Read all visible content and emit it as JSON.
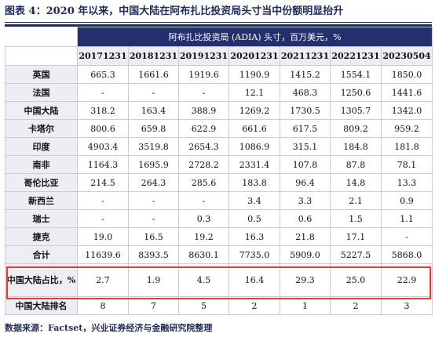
{
  "title": "图表 4：2020 年以来，中国大陆在阿布扎比投资局头寸当中份额明显抬升",
  "table": {
    "banner": "阿布扎比投资局 (ADIA) 头寸，百万美元，%",
    "columns": [
      "20171231",
      "20181231",
      "20191231",
      "20201231",
      "20211231",
      "20221231",
      "20230504"
    ],
    "rows": [
      {
        "label": "英国",
        "values": [
          "665.3",
          "1661.6",
          "1919.6",
          "1190.9",
          "1415.2",
          "1554.1",
          "1850.0"
        ]
      },
      {
        "label": "法国",
        "values": [
          "-",
          "-",
          "-",
          "12.1",
          "468.3",
          "1250.6",
          "1441.6"
        ]
      },
      {
        "label": "中国大陆",
        "values": [
          "318.2",
          "163.4",
          "388.9",
          "1269.2",
          "1730.5",
          "1305.7",
          "1342.0"
        ]
      },
      {
        "label": "卡塔尔",
        "values": [
          "800.6",
          "659.8",
          "622.9",
          "661.6",
          "617.5",
          "809.2",
          "959.2"
        ]
      },
      {
        "label": "印度",
        "values": [
          "4903.4",
          "3519.8",
          "2654.3",
          "1086.9",
          "315.1",
          "184.8",
          "181.8"
        ]
      },
      {
        "label": "南非",
        "values": [
          "1164.3",
          "1695.9",
          "2728.2",
          "2331.4",
          "107.8",
          "87.8",
          "78.1"
        ]
      },
      {
        "label": "哥伦比亚",
        "values": [
          "214.5",
          "264.3",
          "285.6",
          "183.8",
          "96.4",
          "14.8",
          "13.3"
        ]
      },
      {
        "label": "新西兰",
        "values": [
          "-",
          "-",
          "-",
          "3.4",
          "3.3",
          "2.1",
          "0.9"
        ]
      },
      {
        "label": "瑞士",
        "values": [
          "-",
          "-",
          "0.3",
          "0.5",
          "0.6",
          "1.5",
          "1.1"
        ]
      },
      {
        "label": "捷克",
        "values": [
          "19.0",
          "16.5",
          "19.2",
          "16.3",
          "21.8",
          "17.1",
          "-"
        ]
      },
      {
        "label": "合计",
        "values": [
          "11639.6",
          "8393.5",
          "8630.1",
          "7735.0",
          "5909.0",
          "5227.5",
          "5868.0"
        ]
      }
    ],
    "share_row": {
      "label": "中国大陆占比，%",
      "values": [
        "2.7",
        "1.9",
        "4.5",
        "16.4",
        "29.3",
        "25.0",
        "22.9"
      ]
    },
    "rank_row": {
      "label": "中国大陆排名",
      "values": [
        "8",
        "7",
        "5",
        "2",
        "1",
        "2",
        "3"
      ]
    }
  },
  "source": "数据来源：Factset，兴业证券经济与金融研究院整理",
  "colors": {
    "header_bg": "#24306d",
    "highlight": "#e23a3a",
    "label_bg": "#eceef4"
  }
}
